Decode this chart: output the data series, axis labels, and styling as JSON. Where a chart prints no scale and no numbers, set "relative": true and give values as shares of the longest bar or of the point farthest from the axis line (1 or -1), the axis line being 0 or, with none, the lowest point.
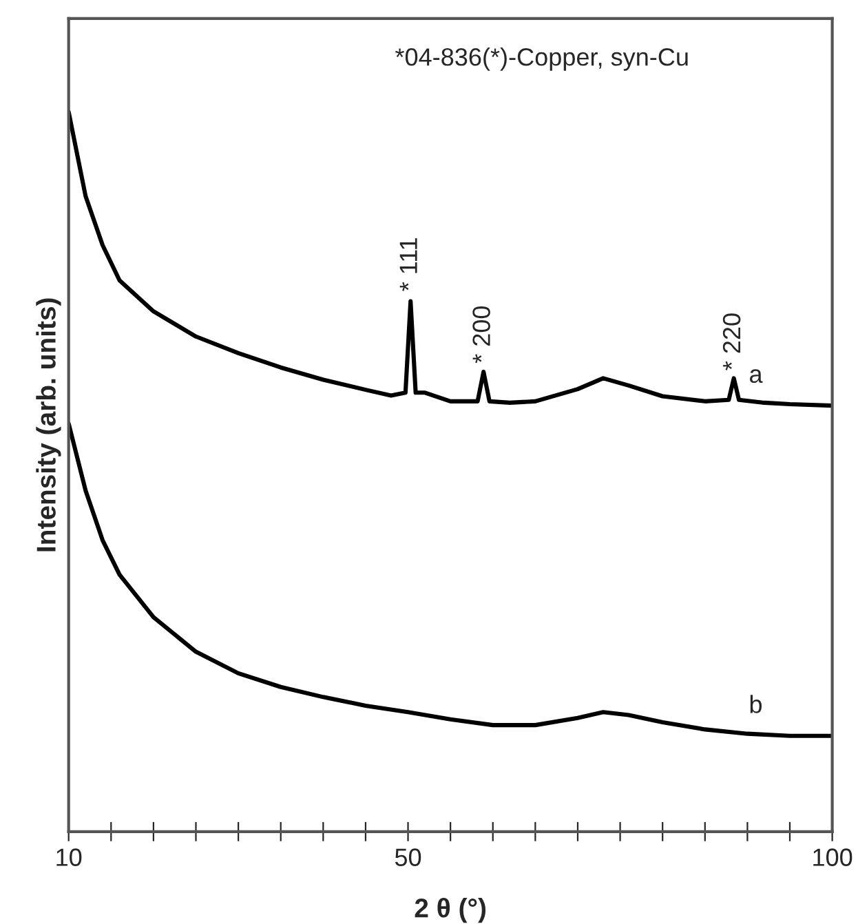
{
  "chart_data": {
    "type": "line",
    "relative": true,
    "xlabel": "2 θ (°)",
    "ylabel": "Intensity (arb. units)",
    "xlim": [
      10,
      100
    ],
    "xticks": [
      10,
      {
        "value": 15,
        "label": null
      },
      {
        "value": 20,
        "label": null
      },
      {
        "value": 25,
        "label": null
      },
      {
        "value": 30,
        "label": null
      },
      {
        "value": 35,
        "label": null
      },
      {
        "value": 40,
        "label": null
      },
      {
        "value": 45,
        "label": null
      },
      50,
      {
        "value": 55,
        "label": null
      },
      {
        "value": 60,
        "label": null
      },
      {
        "value": 65,
        "label": null
      },
      {
        "value": 70,
        "label": null
      },
      {
        "value": 75,
        "label": null
      },
      {
        "value": 80,
        "label": null
      },
      {
        "value": 85,
        "label": null
      },
      {
        "value": 90,
        "label": null
      },
      {
        "value": 95,
        "label": null
      },
      100
    ],
    "grid": false,
    "legend": false,
    "annotations": [
      "*04-836(*)-Copper, syn-Cu",
      {
        "text": "* 111",
        "x": 50.3,
        "y": 0.74
      },
      {
        "text": "* 200",
        "x": 58.9,
        "y": 0.64
      },
      {
        "text": "* 220",
        "x": 88.4,
        "y": 0.63
      }
    ],
    "series": [
      {
        "name": "a",
        "color": "#000000",
        "x": [
          10,
          12,
          14,
          16,
          20,
          25,
          30,
          35,
          40,
          45,
          48,
          49.7,
          50.3,
          50.9,
          52,
          55,
          58.2,
          58.9,
          59.6,
          62,
          65,
          70,
          73,
          76,
          80,
          85,
          87.8,
          88.4,
          89,
          92,
          95,
          100
        ],
        "values": [
          1.0,
          0.883,
          0.815,
          0.766,
          0.723,
          0.688,
          0.665,
          0.645,
          0.628,
          0.614,
          0.606,
          0.61,
          0.737,
          0.61,
          0.61,
          0.598,
          0.598,
          0.639,
          0.598,
          0.596,
          0.598,
          0.615,
          0.63,
          0.62,
          0.605,
          0.598,
          0.6,
          0.63,
          0.6,
          0.596,
          0.594,
          0.592
        ]
      },
      {
        "name": "b",
        "color": "#000000",
        "x": [
          10,
          12,
          14,
          16,
          20,
          25,
          30,
          35,
          40,
          45,
          50,
          55,
          60,
          65,
          70,
          73,
          76,
          80,
          85,
          90,
          95,
          100
        ],
        "values": [
          0.567,
          0.474,
          0.405,
          0.357,
          0.298,
          0.25,
          0.22,
          0.201,
          0.187,
          0.175,
          0.166,
          0.156,
          0.148,
          0.148,
          0.158,
          0.166,
          0.162,
          0.152,
          0.142,
          0.136,
          0.133,
          0.133
        ]
      }
    ]
  }
}
